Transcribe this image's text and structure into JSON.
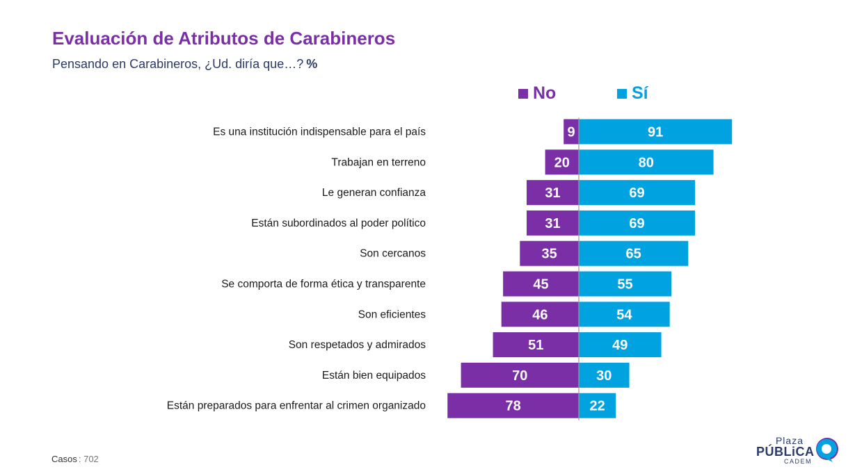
{
  "header": {
    "title": "Evaluación de Atributos de Carabineros",
    "subtitle": "Pensando en Carabineros, ¿Ud. diría que…?",
    "unit": "%"
  },
  "legend": {
    "no_label": "No",
    "si_label": "Sí"
  },
  "colors": {
    "no": "#7b2fa6",
    "si": "#00a3e0",
    "title": "#7b2fa6",
    "subtitle": "#2b3a67"
  },
  "chart_data": {
    "type": "bar",
    "orientation": "horizontal-diverging",
    "categories": [
      "Es una institución indispensable para el país",
      "Trabajan en terreno",
      "Le generan confianza",
      "Están subordinados al poder político",
      "Son cercanos",
      "Se comporta de forma ética y transparente",
      "Son eficientes",
      "Son respetados y admirados",
      "Están bien equipados",
      "Están preparados para enfrentar al crimen organizado"
    ],
    "series": [
      {
        "name": "No",
        "values": [
          9,
          20,
          31,
          31,
          35,
          45,
          46,
          51,
          70,
          78
        ]
      },
      {
        "name": "Sí",
        "values": [
          91,
          80,
          69,
          69,
          65,
          55,
          54,
          49,
          30,
          22
        ]
      }
    ],
    "title": "Evaluación de Atributos de Carabineros",
    "xlabel": "",
    "ylabel": "",
    "xlim": [
      0,
      100
    ],
    "grid": false,
    "legend_position": "top"
  },
  "footer": {
    "cases_label": "Casos",
    "cases_value": ": 702"
  },
  "logo": {
    "line1": "Plaza",
    "line2": "PÚBLiCA",
    "line3": "CADEM"
  }
}
